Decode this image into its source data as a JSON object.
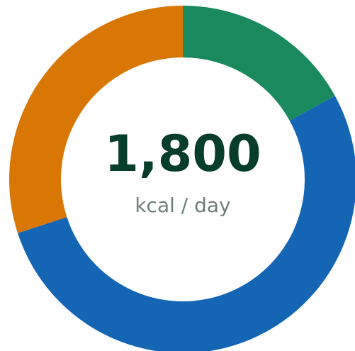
{
  "chart_data": {
    "type": "donut",
    "categories": [
      null,
      null,
      null
    ],
    "values": [
      17,
      53,
      30
    ],
    "colors": [
      "#1a8a5e",
      "#1565b5",
      "#d97706"
    ],
    "center_label": "1,800",
    "center_sublabel": "kcal / day"
  }
}
